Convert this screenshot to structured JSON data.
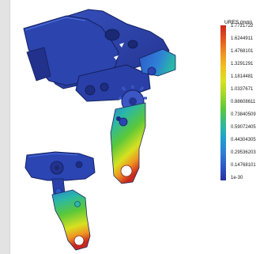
{
  "legend": {
    "title": "URES (mm)",
    "labels": [
      "1.7721722",
      "1.6244911",
      "1.4768101",
      "1.3291291",
      "1.1814481",
      "1.0337671",
      "0.88608611",
      "0.73840509",
      "0.59072405",
      "0.44304305",
      "0.29536203",
      "0.14768101",
      "1e-30"
    ],
    "colors": {
      "max": "#c8281f",
      "high": "#ef9222",
      "mid_high": "#f1c21f",
      "mid": "#5ac83a",
      "mid_low": "#2ab7a8",
      "low": "#2f7fd6",
      "min": "#27309e"
    }
  },
  "model_colors": {
    "body_dark": "#24348f",
    "body": "#2b45b3",
    "body_light": "#3f62cf",
    "edge": "#142060"
  }
}
